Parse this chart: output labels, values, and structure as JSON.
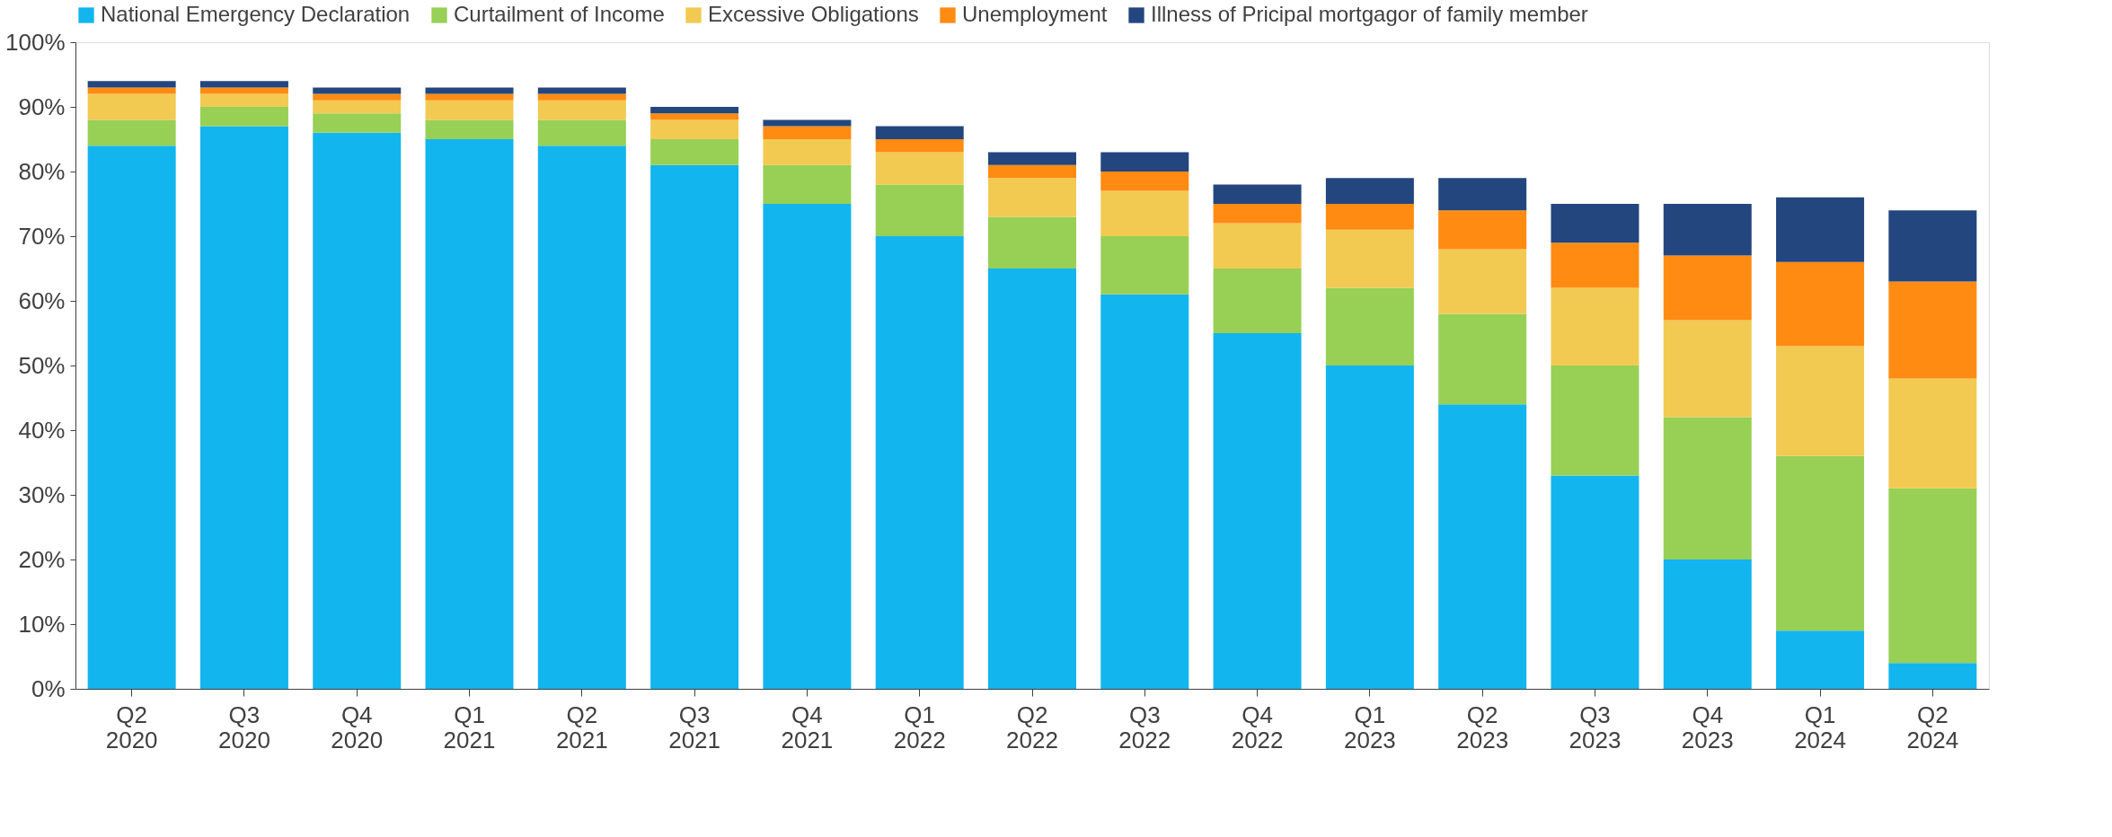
{
  "chart_data": {
    "type": "bar",
    "stacked": true,
    "categories": [
      "Q2 2020",
      "Q3 2020",
      "Q4 2020",
      "Q1 2021",
      "Q2 2021",
      "Q3 2021",
      "Q4 2021",
      "Q1 2022",
      "Q2 2022",
      "Q3 2022",
      "Q4 2022",
      "Q1 2023",
      "Q2 2023",
      "Q3 2023",
      "Q4 2023",
      "Q1 2024",
      "Q2 2024"
    ],
    "series": [
      {
        "name": "National Emergency Declaration",
        "color": "#12b5ee",
        "values": [
          84,
          87,
          86,
          85,
          84,
          81,
          75,
          70,
          65,
          61,
          55,
          50,
          44,
          33,
          20,
          9,
          4
        ]
      },
      {
        "name": "Curtailment of Income",
        "color": "#97d055",
        "values": [
          4,
          3,
          3,
          3,
          4,
          4,
          6,
          8,
          8,
          9,
          10,
          12,
          14,
          17,
          22,
          27,
          27
        ]
      },
      {
        "name": "Excessive Obligations",
        "color": "#f2ca52",
        "values": [
          4,
          2,
          2,
          3,
          3,
          3,
          4,
          5,
          6,
          7,
          7,
          9,
          10,
          12,
          15,
          17,
          17
        ]
      },
      {
        "name": "Unemployment",
        "color": "#ff8b12",
        "values": [
          1,
          1,
          1,
          1,
          1,
          1,
          2,
          2,
          2,
          3,
          3,
          4,
          6,
          7,
          10,
          13,
          15
        ]
      },
      {
        "name": "Illness of Pricipal mortgagor of family member",
        "color": "#23467e",
        "values": [
          1,
          1,
          1,
          1,
          1,
          1,
          1,
          2,
          2,
          3,
          3,
          4,
          5,
          6,
          8,
          10,
          11
        ]
      }
    ],
    "ylim": [
      0,
      100
    ],
    "yticks": [
      {
        "value": 0,
        "label": "0%"
      },
      {
        "value": 10,
        "label": "10%"
      },
      {
        "value": 20,
        "label": "20%"
      },
      {
        "value": 30,
        "label": "30%"
      },
      {
        "value": 40,
        "label": "40%"
      },
      {
        "value": 50,
        "label": "50%"
      },
      {
        "value": 60,
        "label": "60%"
      },
      {
        "value": 70,
        "label": "70%"
      },
      {
        "value": 80,
        "label": "80%"
      },
      {
        "value": 90,
        "label": "90%"
      },
      {
        "value": 100,
        "label": "100%"
      }
    ],
    "grid": false,
    "legend": "top"
  }
}
